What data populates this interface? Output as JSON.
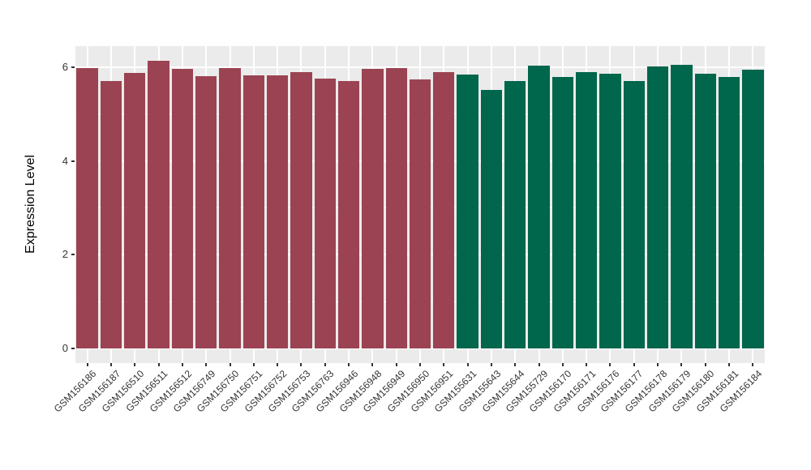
{
  "figure": {
    "background_color": "#FFFFFF",
    "panel_background_color": "#EBEBEB",
    "gridline_color": "#FFFFFF",
    "axis_text_color": "#333333",
    "axis_title_color": "#000000"
  },
  "chart_data": {
    "type": "bar",
    "ylabel": "Expression Level",
    "xlabel": "",
    "ylim": [
      -0.31,
      6.45
    ],
    "yticks_major": [
      0,
      2,
      4,
      6
    ],
    "yticks_minor": [
      1,
      3,
      5
    ],
    "grid": "on",
    "legend_position": "none",
    "bar_width_fraction": 0.9,
    "x_label_rotation_deg": 45,
    "group_colors": {
      "group1": "#9B4352",
      "group2": "#00664C"
    },
    "categories": [
      "GSM156186",
      "GSM156187",
      "GSM156510",
      "GSM156511",
      "GSM156512",
      "GSM156749",
      "GSM156750",
      "GSM156751",
      "GSM156752",
      "GSM156753",
      "GSM156763",
      "GSM156946",
      "GSM156948",
      "GSM156949",
      "GSM156950",
      "GSM156951",
      "GSM155631",
      "GSM155643",
      "GSM155644",
      "GSM155729",
      "GSM156170",
      "GSM156171",
      "GSM156176",
      "GSM156177",
      "GSM156178",
      "GSM156179",
      "GSM156180",
      "GSM156181",
      "GSM156184"
    ],
    "values": [
      5.99,
      5.71,
      5.88,
      6.14,
      5.97,
      5.81,
      5.99,
      5.83,
      5.83,
      5.89,
      5.76,
      5.71,
      5.97,
      5.99,
      5.74,
      5.9,
      5.84,
      5.51,
      5.7,
      6.03,
      5.79,
      5.9,
      5.86,
      5.7,
      6.02,
      6.05,
      5.87,
      5.8,
      5.95
    ],
    "groups": [
      "group1",
      "group1",
      "group1",
      "group1",
      "group1",
      "group1",
      "group1",
      "group1",
      "group1",
      "group1",
      "group1",
      "group1",
      "group1",
      "group1",
      "group1",
      "group1",
      "group2",
      "group2",
      "group2",
      "group2",
      "group2",
      "group2",
      "group2",
      "group2",
      "group2",
      "group2",
      "group2",
      "group2",
      "group2"
    ]
  }
}
